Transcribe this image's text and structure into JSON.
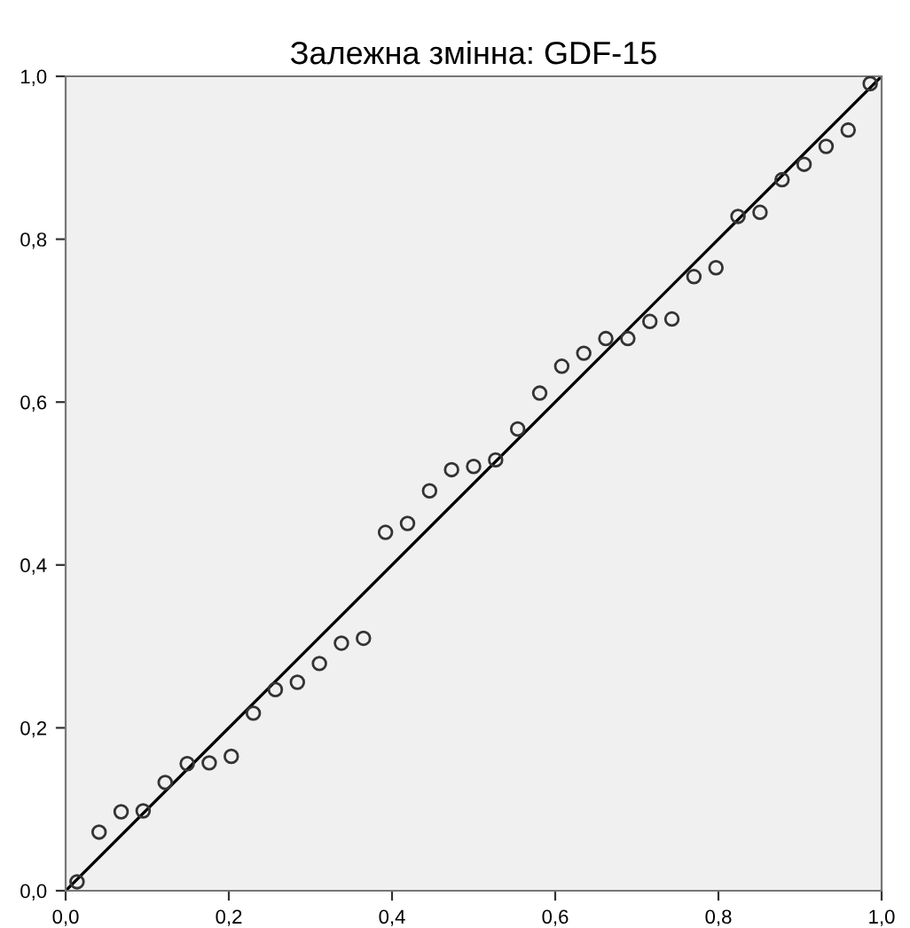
{
  "chart_data": {
    "type": "scatter",
    "title": "Залежна змінна: GDF-15",
    "series": [
      {
        "color": "#333333",
        "marker": "circle",
        "x": [
          0.014,
          0.041,
          0.068,
          0.095,
          0.122,
          0.149,
          0.176,
          0.203,
          0.23,
          0.257,
          0.284,
          0.311,
          0.338,
          0.365,
          0.392,
          0.419,
          0.446,
          0.473,
          0.5,
          0.527,
          0.554,
          0.581,
          0.608,
          0.635,
          0.662,
          0.689,
          0.716,
          0.743,
          0.77,
          0.797,
          0.824,
          0.851,
          0.878,
          0.905,
          0.932,
          0.959,
          0.986
        ],
        "values": [
          0.011,
          0.072,
          0.097,
          0.098,
          0.133,
          0.156,
          0.157,
          0.165,
          0.218,
          0.247,
          0.256,
          0.279,
          0.304,
          0.31,
          0.44,
          0.451,
          0.491,
          0.517,
          0.521,
          0.529,
          0.567,
          0.611,
          0.644,
          0.66,
          0.678,
          0.678,
          0.699,
          0.702,
          0.754,
          0.765,
          0.828,
          0.833,
          0.873,
          0.892,
          0.914,
          0.934,
          0.991
        ]
      },
      {
        "type": "line",
        "color": "#000000",
        "marker": "none",
        "x": [
          0,
          1
        ],
        "values": [
          0,
          1
        ]
      }
    ],
    "xlim": [
      0,
      1
    ],
    "ylim": [
      0,
      1
    ],
    "xticks": [
      {
        "value": 0,
        "label": "0,0"
      },
      {
        "value": 0.2,
        "label": "0,2"
      },
      {
        "value": 0.4,
        "label": "0,4"
      },
      {
        "value": 0.6,
        "label": "0,6"
      },
      {
        "value": 0.8,
        "label": "0,8"
      },
      {
        "value": 1,
        "label": "1,0"
      }
    ],
    "yticks": [
      {
        "value": 0,
        "label": "0,0"
      },
      {
        "value": 0.2,
        "label": "0,2"
      },
      {
        "value": 0.4,
        "label": "0,4"
      },
      {
        "value": 0.6,
        "label": "0,6"
      },
      {
        "value": 0.8,
        "label": "0,8"
      },
      {
        "value": 1,
        "label": "1,0"
      }
    ],
    "grid": false
  }
}
